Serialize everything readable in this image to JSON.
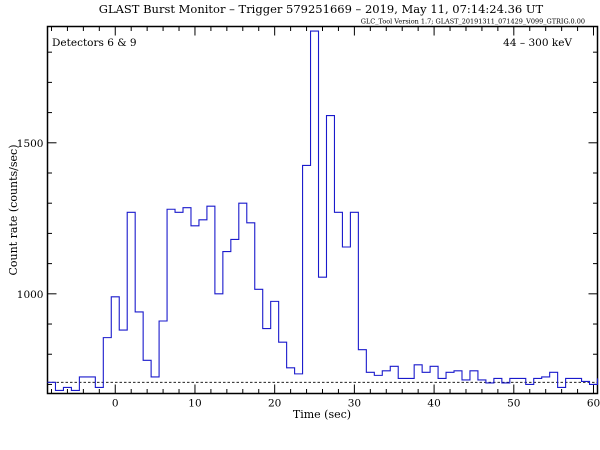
{
  "title": "GLAST Burst Monitor  –  Trigger 579251669  –  2019, May 11, 07:14:24.36 UT",
  "subtitle": "GLC_Tool Version 1.7; GLAST_20191311_071429_V099_GTRIG.0.00",
  "colors": {
    "series": "#1a1acc",
    "axis": "#000000",
    "background": "#ffffff"
  },
  "chart_data": {
    "type": "line",
    "step": true,
    "title": "GLAST Burst Monitor  –  Trigger 579251669  –  2019, May 11, 07:14:24.36 UT",
    "xlabel": "Time (sec)",
    "ylabel": "Count rate (counts/sec)",
    "xlim": [
      -8.5,
      60.5
    ],
    "ylim": [
      670,
      1885
    ],
    "x_ticks": [
      0,
      10,
      20,
      30,
      40,
      50,
      60
    ],
    "x_tick_labels": [
      "0",
      "10",
      "20",
      "30",
      "40",
      "50",
      "60"
    ],
    "y_ticks": [
      1000,
      1500
    ],
    "y_tick_labels": [
      "1000",
      "1500"
    ],
    "top_left_label": "Detectors 6 & 9",
    "top_right_label": "44 – 300 keV",
    "background_level": 707,
    "series": [
      {
        "bin_edges": [
          -8.5,
          -7.5,
          -6.5,
          -5.5,
          -4.5,
          -3.5,
          -2.5,
          -1.5,
          -0.5,
          0.5,
          1.5,
          2.5,
          3.5,
          4.5,
          5.5,
          6.5,
          7.5,
          8.5,
          9.5,
          10.5,
          11.5,
          12.5,
          13.5,
          14.5,
          15.5,
          16.5,
          17.5,
          18.5,
          19.5,
          20.5,
          21.5,
          22.5,
          23.5,
          24.5,
          25.5,
          26.5,
          27.5,
          28.5,
          29.5,
          30.5,
          31.5,
          32.5,
          33.5,
          34.5,
          35.5,
          36.5,
          37.5,
          38.5,
          39.5,
          40.5,
          41.5,
          42.5,
          43.5,
          44.5,
          45.5,
          46.5,
          47.5,
          48.5,
          49.5,
          50.5,
          51.5,
          52.5,
          53.5,
          54.5,
          55.5,
          56.5,
          57.5,
          58.5,
          59.5,
          60.5
        ],
        "values": [
          707,
          680,
          690,
          680,
          725,
          725,
          690,
          855,
          990,
          880,
          1270,
          940,
          780,
          725,
          910,
          1280,
          1270,
          1285,
          1225,
          1245,
          1290,
          1000,
          1140,
          1180,
          1300,
          1235,
          1015,
          885,
          975,
          840,
          755,
          735,
          1425,
          1870,
          1055,
          1590,
          1270,
          1155,
          1270,
          815,
          740,
          730,
          745,
          760,
          720,
          720,
          765,
          740,
          760,
          720,
          740,
          745,
          715,
          745,
          715,
          705,
          720,
          705,
          720,
          720,
          700,
          720,
          725,
          740,
          690,
          720,
          720,
          710,
          700,
          720
        ]
      }
    ]
  }
}
